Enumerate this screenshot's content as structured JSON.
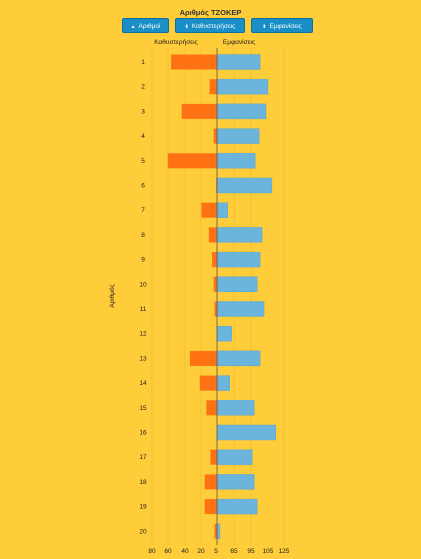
{
  "toolbar": {
    "buttons": [
      {
        "label": "Αριθμοί",
        "icon": "sort-up-icon"
      },
      {
        "label": "Καθυστερήσεις",
        "icon": "sort-updown-icon"
      },
      {
        "label": "Εμφανίσεις",
        "icon": "sort-updown-icon"
      }
    ]
  },
  "chart_data": {
    "type": "bar",
    "title": "Αριθμός ΤΖΟΚΕΡ",
    "ylabel": "Αριθμός",
    "categories": [
      "1",
      "2",
      "3",
      "4",
      "5",
      "6",
      "7",
      "8",
      "9",
      "10",
      "11",
      "12",
      "13",
      "14",
      "15",
      "16",
      "17",
      "18",
      "19",
      "20"
    ],
    "left_ticks": [
      "80",
      "60",
      "40",
      "20",
      "5"
    ],
    "right_ticks": [
      "65",
      "95",
      "105",
      "125"
    ],
    "series": [
      {
        "name": "Καθυστερήσεις",
        "side": "left",
        "color": "#ff7214",
        "values": [
          56,
          9,
          43,
          4,
          60,
          1,
          19,
          10,
          6,
          4,
          3,
          0,
          33,
          21,
          13,
          0,
          8,
          15,
          15,
          3
        ]
      },
      {
        "name": "Εμφανίσεις",
        "side": "right",
        "color": "#6bb5dc",
        "values": [
          108,
          116,
          114,
          107,
          103,
          120,
          75,
          110,
          108,
          105,
          112,
          79,
          108,
          77,
          102,
          124,
          100,
          102,
          105,
          67
        ]
      }
    ]
  }
}
